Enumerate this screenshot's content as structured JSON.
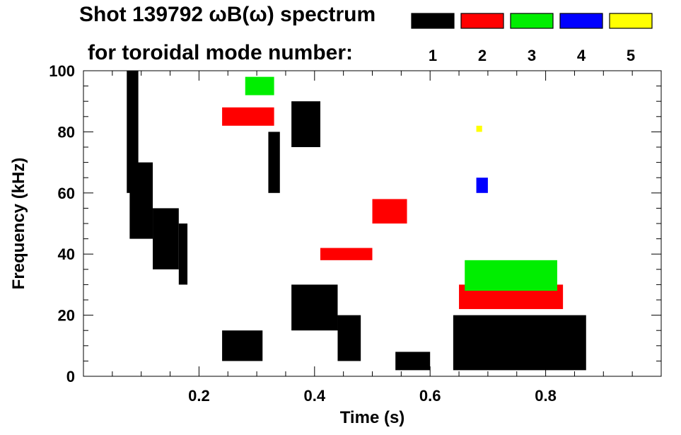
{
  "chart_data": {
    "type": "heatmap",
    "title_line1": "Shot 139792 ωB(ω) spectrum",
    "title_line2": "for toroidal mode number:",
    "xlabel": "Time (s)",
    "ylabel": "Frequency (kHz)",
    "xlim": [
      0.0,
      1.0
    ],
    "ylim": [
      0,
      100
    ],
    "x_ticks": [
      {
        "value": 0.2,
        "label": "0.2"
      },
      {
        "value": 0.4,
        "label": "0.4"
      },
      {
        "value": 0.6,
        "label": "0.6"
      },
      {
        "value": 0.8,
        "label": "0.8"
      }
    ],
    "y_ticks": [
      {
        "value": 0,
        "label": "0"
      },
      {
        "value": 20,
        "label": "20"
      },
      {
        "value": 40,
        "label": "40"
      },
      {
        "value": 60,
        "label": "60"
      },
      {
        "value": 80,
        "label": "80"
      },
      {
        "value": 100,
        "label": "100"
      }
    ],
    "legend": [
      {
        "mode": "1",
        "color": "#000000"
      },
      {
        "mode": "2",
        "color": "#ff0000"
      },
      {
        "mode": "3",
        "color": "#00ee00"
      },
      {
        "mode": "4",
        "color": "#0000ff"
      },
      {
        "mode": "5",
        "color": "#ffff00"
      }
    ],
    "regions": [
      {
        "mode": 1,
        "t": [
          0.075,
          0.095
        ],
        "f": [
          60,
          100
        ]
      },
      {
        "mode": 1,
        "t": [
          0.08,
          0.12
        ],
        "f": [
          45,
          70
        ]
      },
      {
        "mode": 1,
        "t": [
          0.12,
          0.165
        ],
        "f": [
          35,
          55
        ]
      },
      {
        "mode": 1,
        "t": [
          0.165,
          0.18
        ],
        "f": [
          30,
          50
        ]
      },
      {
        "mode": 1,
        "t": [
          0.32,
          0.34
        ],
        "f": [
          60,
          80
        ]
      },
      {
        "mode": 1,
        "t": [
          0.24,
          0.31
        ],
        "f": [
          5,
          15
        ]
      },
      {
        "mode": 1,
        "t": [
          0.36,
          0.41
        ],
        "f": [
          75,
          90
        ]
      },
      {
        "mode": 1,
        "t": [
          0.36,
          0.44
        ],
        "f": [
          15,
          30
        ]
      },
      {
        "mode": 1,
        "t": [
          0.44,
          0.48
        ],
        "f": [
          5,
          20
        ]
      },
      {
        "mode": 1,
        "t": [
          0.54,
          0.6
        ],
        "f": [
          2,
          8
        ]
      },
      {
        "mode": 1,
        "t": [
          0.64,
          0.87
        ],
        "f": [
          2,
          20
        ]
      },
      {
        "mode": 2,
        "t": [
          0.24,
          0.33
        ],
        "f": [
          82,
          88
        ]
      },
      {
        "mode": 2,
        "t": [
          0.41,
          0.5
        ],
        "f": [
          38,
          42
        ]
      },
      {
        "mode": 2,
        "t": [
          0.5,
          0.56
        ],
        "f": [
          50,
          58
        ]
      },
      {
        "mode": 2,
        "t": [
          0.65,
          0.83
        ],
        "f": [
          22,
          30
        ]
      },
      {
        "mode": 3,
        "t": [
          0.28,
          0.33
        ],
        "f": [
          92,
          98
        ]
      },
      {
        "mode": 3,
        "t": [
          0.66,
          0.82
        ],
        "f": [
          28,
          38
        ]
      },
      {
        "mode": 4,
        "t": [
          0.68,
          0.7
        ],
        "f": [
          60,
          65
        ]
      },
      {
        "mode": 5,
        "t": [
          0.68,
          0.69
        ],
        "f": [
          80,
          82
        ]
      }
    ]
  }
}
